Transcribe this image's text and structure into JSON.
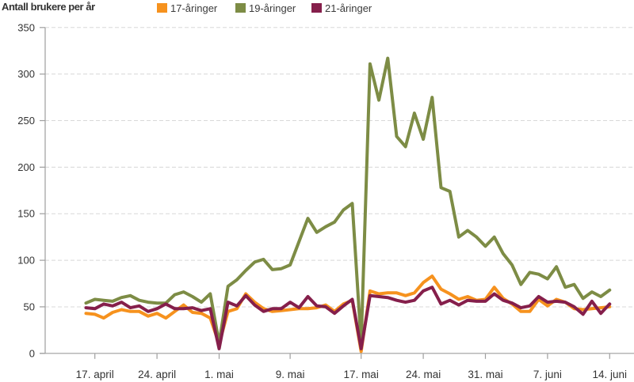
{
  "title": "Antall brukere per år",
  "legend": [
    {
      "label": "17-åringer",
      "color": "#f6921e"
    },
    {
      "label": "19-åringer",
      "color": "#7d8c45"
    },
    {
      "label": "21-åringer",
      "color": "#851f4b"
    }
  ],
  "colors": {
    "background": "#ffffff",
    "axis": "#9e9e9e",
    "gridline": "#d8d8d8",
    "text": "#333333"
  },
  "chart_data": {
    "type": "line",
    "title": "Antall brukere per år",
    "xlabel": "",
    "ylabel": "",
    "ylim": [
      0,
      350
    ],
    "y_ticks": [
      0,
      50,
      100,
      150,
      200,
      250,
      300,
      350
    ],
    "grid": "dashed horizontal",
    "legend_position": "top",
    "x_unit": "dag (16. april – 14. juni)",
    "x_tick_labels": [
      "17. april",
      "24. april",
      "1. mai",
      "9. mai",
      "17. mai",
      "24. mai",
      "31. mai",
      "7. juni",
      "14. juni"
    ],
    "x_tick_day_index": [
      1,
      8,
      15,
      23,
      31,
      38,
      45,
      52,
      59
    ],
    "series": [
      {
        "name": "17-åringer",
        "color": "#f6921e",
        "values": [
          43,
          42,
          38,
          44,
          47,
          45,
          45,
          40,
          43,
          38,
          45,
          52,
          44,
          43,
          38,
          10,
          45,
          48,
          64,
          55,
          48,
          45,
          46,
          47,
          48,
          48,
          49,
          52,
          45,
          53,
          57,
          2,
          67,
          64,
          65,
          65,
          62,
          65,
          76,
          83,
          69,
          64,
          58,
          61,
          57,
          58,
          71,
          59,
          53,
          45,
          45,
          58,
          51,
          58,
          55,
          48,
          47,
          48,
          49,
          50
        ]
      },
      {
        "name": "19-åringer",
        "color": "#7d8c45",
        "values": [
          54,
          58,
          57,
          56,
          60,
          62,
          57,
          55,
          54,
          54,
          63,
          66,
          61,
          55,
          64,
          11,
          72,
          79,
          89,
          98,
          101,
          90,
          91,
          95,
          120,
          145,
          130,
          136,
          141,
          154,
          161,
          11,
          311,
          272,
          317,
          233,
          222,
          258,
          230,
          275,
          178,
          174,
          125,
          132,
          125,
          115,
          125,
          107,
          95,
          74,
          87,
          85,
          80,
          93,
          71,
          74,
          59,
          66,
          61,
          68
        ]
      },
      {
        "name": "21-åringer",
        "color": "#851f4b",
        "values": [
          49,
          48,
          53,
          51,
          55,
          49,
          51,
          45,
          48,
          53,
          48,
          48,
          49,
          46,
          48,
          5,
          55,
          51,
          62,
          52,
          45,
          48,
          48,
          55,
          49,
          61,
          51,
          50,
          43,
          51,
          58,
          5,
          62,
          61,
          60,
          57,
          55,
          57,
          67,
          71,
          53,
          57,
          52,
          57,
          56,
          56,
          64,
          57,
          54,
          49,
          51,
          61,
          55,
          56,
          55,
          50,
          42,
          56,
          43,
          53
        ]
      }
    ]
  }
}
